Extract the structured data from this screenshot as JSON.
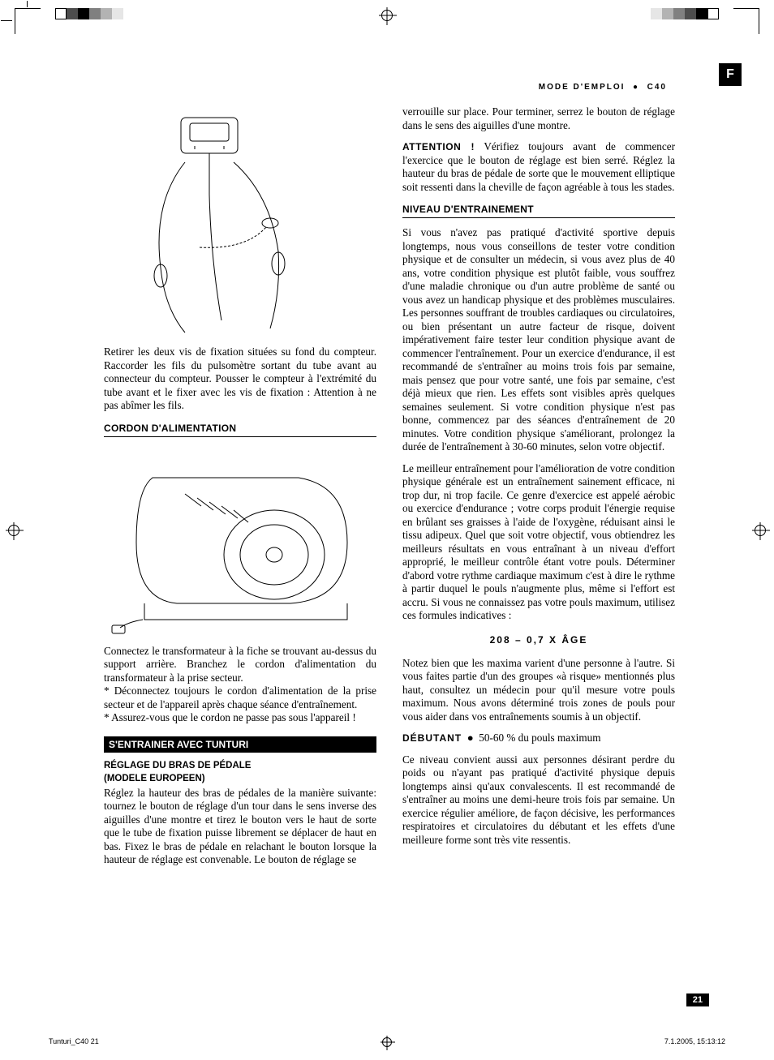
{
  "printer_marks": {
    "swatches_left": [
      "#ffffff",
      "#4d4d4d",
      "#000000",
      "#808080",
      "#b3b3b3",
      "#e6e6e6"
    ],
    "swatches_right": [
      "#e6e6e6",
      "#b3b3b3",
      "#808080",
      "#4d4d4d",
      "#000000",
      "#ffffff"
    ]
  },
  "header": {
    "title_left": "MODE D'EMPLOI",
    "title_right": "C40",
    "lang_tab": "F"
  },
  "left_column": {
    "figure1_alt": "elliptical console assembly diagram",
    "para1": "Retirer les deux vis de fixation situées su fond du compteur. Raccorder les fils du pulsomètre sortant du tube avant au connecteur du compteur. Pousser le compteur à l'extrémité du tube avant et le fixer avec les vis de fixation : Attention à ne pas abîmer les fils.",
    "sec_cord": "CORDON D'ALIMENTATION",
    "figure2_alt": "power cord connection diagram",
    "para2": "Connectez le transformateur à la fiche se trouvant au-dessus du support arrière. Branchez le cordon d'alimentation du transformateur à la prise secteur.",
    "para2b": "* Déconnectez toujours le cordon d'alimentation de la prise secteur et de l'appareil après chaque séance d'entraînement.",
    "para2c": "* Assurez-vous que le cordon ne passe pas sous l'appareil !",
    "black_bar": "S'ENTRAINER AVEC TUNTURI",
    "sec_pedal": "RÉGLAGE DU BRAS DE PÉDALE",
    "sec_model": "(MODELE EUROPEEN)",
    "para3": "Réglez la hauteur des bras de pédales de la manière suivante: tournez le bouton de réglage d'un tour dans le sens inverse des aiguilles d'une montre et tirez le bouton vers le haut de sorte que le tube de fixation puisse librement se déplacer de haut en bas. Fixez le bras de pédale en relachant le bouton lorsque la hauteur de réglage est convenable. Le bouton de réglage se"
  },
  "right_column": {
    "para1": "verrouille sur place. Pour terminer, serrez le bouton de réglage dans le sens des aiguilles d'une montre.",
    "attention_label": "ATTENTION !",
    "attention_text": " Vérifiez toujours avant de commencer l'exercice que le bouton de réglage est bien serré. Réglez la hauteur du bras de pédale de sorte que le mouvement elliptique soit ressenti dans la cheville de façon agréable à tous les stades.",
    "sec_niveau": "NIVEAU D'ENTRAINEMENT",
    "para2": "Si vous n'avez pas pratiqué d'activité sportive depuis longtemps, nous vous conseillons de tester votre condition physique et de consulter un médecin, si vous avez plus de 40 ans, votre condition physique est plutôt faible, vous souffrez d'une maladie chronique ou d'un autre problème de santé ou vous avez un handicap physique et des problèmes musculaires. Les personnes souffrant de troubles cardiaques ou circulatoires, ou bien présentant un autre facteur de risque, doivent impérativement faire tester leur condition physique avant de commencer l'entraînement. Pour un exercice d'endurance, il est recommandé de s'entraîner au moins trois fois par semaine, mais pensez que pour votre santé, une fois par semaine, c'est déjà mieux que rien. Les effets sont visibles après quelques semaines seulement. Si votre condition physique n'est pas bonne, commencez par des séances d'entraînement de 20 minutes. Votre condition physique s'améliorant, prolongez la durée de l'entraînement à 30-60 minutes, selon votre objectif.",
    "para3": "Le meilleur entraînement pour l'amélioration de votre condition physique générale est un entraînement sainement efficace, ni trop dur, ni trop facile. Ce genre d'exercice est appelé aérobic ou exercice d'endurance ; votre corps produit l'énergie requise en brûlant ses graisses à l'aide de l'oxygène, réduisant ainsi le tissu adipeux. Quel que soit votre objectif, vous obtiendrez les meilleurs résultats en vous entraînant à un niveau d'effort approprié, le meilleur contrôle étant votre pouls. Déterminer d'abord votre rythme cardiaque maximum c'est à dire le rythme à partir duquel le pouls n'augmente plus, même si l'effort est accru. Si vous ne connaissez pas votre pouls maximum, utilisez ces formules indicatives :",
    "formula": "208 – 0,7 X ÂGE",
    "para4": "Notez bien que les maxima varient d'une personne à l'autre. Si vous faites partie d'un des groupes «à risque» mentionnés plus haut, consultez un médecin pour qu'il mesure votre pouls maximum. Nous avons déterminé trois zones de pouls pour vous aider dans vos entraînements soumis à un objectif.",
    "debutant_label": "DÉBUTANT",
    "debutant_text": " 50-60 % du pouls maximum",
    "para5": "Ce niveau convient aussi aux personnes désirant perdre du poids ou n'ayant pas pratiqué d'activité physique depuis longtemps ainsi qu'aux convalescents. Il est recommandé de s'entraîner au moins une demi-heure trois fois par semaine. Un exercice régulier améliore, de façon décisive, les performances respiratoires et circulatoires du débutant et les effets d'une meilleure forme sont très vite ressentis."
  },
  "page_number": "21",
  "footer": {
    "left": "Tunturi_C40   21",
    "right": "7.1.2005, 15:13:12"
  }
}
